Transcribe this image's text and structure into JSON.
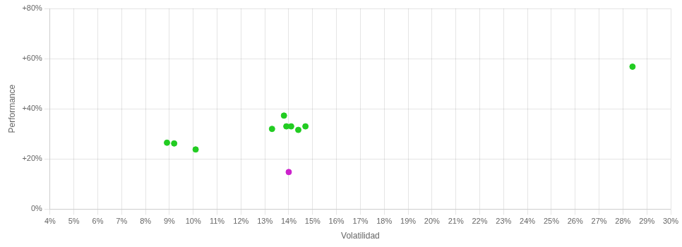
{
  "chart_data": {
    "type": "scatter",
    "xlabel": "Volatilidad",
    "ylabel": "Performance",
    "xlim": [
      0.04,
      0.3
    ],
    "ylim": [
      0.0,
      0.8
    ],
    "xticks": [
      {
        "value": 0.04,
        "label": "4%"
      },
      {
        "value": 0.05,
        "label": "5%"
      },
      {
        "value": 0.06,
        "label": "6%"
      },
      {
        "value": 0.07,
        "label": "7%"
      },
      {
        "value": 0.08,
        "label": "8%"
      },
      {
        "value": 0.09,
        "label": "9%"
      },
      {
        "value": 0.1,
        "label": "10%"
      },
      {
        "value": 0.11,
        "label": "11%"
      },
      {
        "value": 0.12,
        "label": "12%"
      },
      {
        "value": 0.13,
        "label": "13%"
      },
      {
        "value": 0.14,
        "label": "14%"
      },
      {
        "value": 0.15,
        "label": "15%"
      },
      {
        "value": 0.16,
        "label": "16%"
      },
      {
        "value": 0.17,
        "label": "17%"
      },
      {
        "value": 0.18,
        "label": "18%"
      },
      {
        "value": 0.19,
        "label": "19%"
      },
      {
        "value": 0.2,
        "label": "20%"
      },
      {
        "value": 0.21,
        "label": "21%"
      },
      {
        "value": 0.22,
        "label": "22%"
      },
      {
        "value": 0.23,
        "label": "23%"
      },
      {
        "value": 0.24,
        "label": "24%"
      },
      {
        "value": 0.25,
        "label": "25%"
      },
      {
        "value": 0.26,
        "label": "26%"
      },
      {
        "value": 0.27,
        "label": "27%"
      },
      {
        "value": 0.28,
        "label": "28%"
      },
      {
        "value": 0.29,
        "label": "29%"
      },
      {
        "value": 0.3,
        "label": "30%"
      }
    ],
    "yticks": [
      {
        "value": 0.0,
        "label": "0%"
      },
      {
        "value": 0.2,
        "label": "+20%"
      },
      {
        "value": 0.4,
        "label": "+40%"
      },
      {
        "value": 0.6,
        "label": "+60%"
      },
      {
        "value": 0.8,
        "label": "+80%"
      }
    ],
    "grid": true,
    "series": [
      {
        "color": "#22cc22",
        "x": [
          0.089,
          0.092,
          0.101,
          0.133,
          0.138,
          0.139,
          0.141,
          0.144,
          0.147,
          0.284
        ],
        "values": [
          0.265,
          0.262,
          0.238,
          0.32,
          0.373,
          0.33,
          0.33,
          0.316,
          0.33,
          0.568
        ]
      },
      {
        "color": "#cc22cc",
        "x": [
          0.14
        ],
        "values": [
          0.148
        ]
      }
    ]
  }
}
